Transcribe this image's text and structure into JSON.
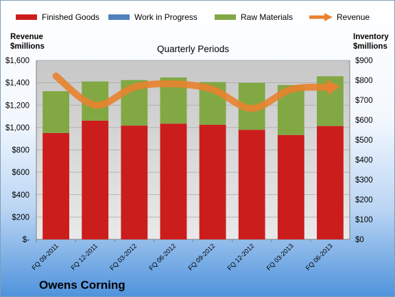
{
  "company": "Owens Corning",
  "chart_data": {
    "type": "bar",
    "stacked": true,
    "title": "Quarterly Periods",
    "left_axis_title": [
      "Revenue",
      "$millions"
    ],
    "right_axis_title": [
      "Inventory",
      "$millions"
    ],
    "categories": [
      "FQ 09-2011",
      "FQ 12-2011",
      "FQ 03-2012",
      "FQ 06-2012",
      "FQ 09-2012",
      "FQ 12-2012",
      "FQ 03-2013",
      "FQ 06-2013"
    ],
    "left_axis": {
      "min": 0,
      "max": 1600,
      "step": 200,
      "tick_labels": [
        "$-",
        "$200",
        "$400",
        "$600",
        "$800",
        "$1,000",
        "$1,200",
        "$1,400",
        "$1,600"
      ]
    },
    "right_axis": {
      "min": 0,
      "max": 900,
      "step": 100,
      "tick_labels": [
        "$0",
        "$100",
        "$200",
        "$300",
        "$400",
        "$500",
        "$600",
        "$700",
        "$800",
        "$900"
      ]
    },
    "inventory_series": [
      {
        "name": "Finished Goods",
        "color": "#cc1d1d",
        "values": [
          535,
          597,
          572,
          582,
          576,
          551,
          525,
          570
        ]
      },
      {
        "name": "Work in Progress",
        "color": "#4f81bd",
        "values": [
          0,
          0,
          0,
          0,
          0,
          0,
          0,
          0
        ]
      },
      {
        "name": "Raw Materials",
        "color": "#82a844",
        "values": [
          210,
          197,
          229,
          232,
          215,
          236,
          251,
          250
        ]
      }
    ],
    "revenue_series": {
      "name": "Revenue",
      "color": "#e8822f",
      "values": [
        1460,
        1200,
        1360,
        1390,
        1340,
        1170,
        1340,
        1360
      ]
    },
    "grid": true
  }
}
